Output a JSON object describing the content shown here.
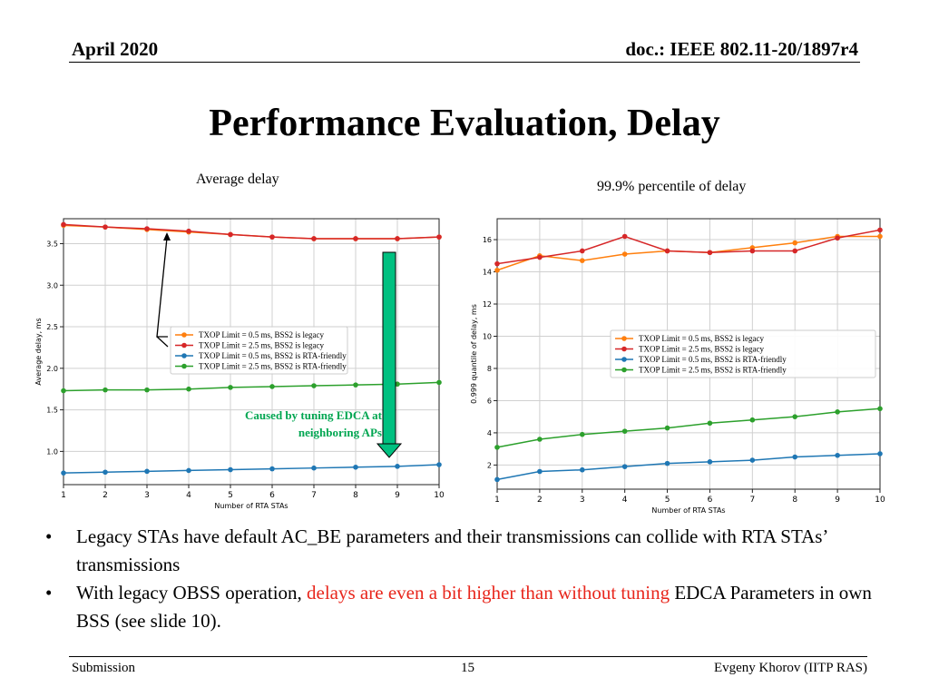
{
  "header": {
    "left": "April 2020",
    "right": "doc.: IEEE 802.11-20/1897r4"
  },
  "title": "Performance Evaluation, Delay",
  "captions": {
    "left": "Average delay",
    "right": "99.9% percentile of delay"
  },
  "annotation": {
    "line1": "Caused by tuning EDCA at",
    "line2": "neighboring APs",
    "color": "#00a651",
    "arrow_color": "#00c080"
  },
  "chart_data": [
    {
      "type": "line",
      "xlabel": "Number of RTA STAs",
      "ylabel": "Average delay, ms",
      "x": [
        1,
        2,
        3,
        4,
        5,
        6,
        7,
        8,
        9,
        10
      ],
      "xlim": [
        1,
        10
      ],
      "ylim": [
        0.6,
        3.8
      ],
      "yticks": [
        1.0,
        1.5,
        2.0,
        2.5,
        3.0,
        3.5
      ],
      "ytick_labels": [
        "1.0",
        "1.5",
        "2.0",
        "2.5",
        "3.0",
        "3.5"
      ],
      "grid": true,
      "legend_position": "center",
      "series": [
        {
          "name": "TXOP Limit = 0.5 ms, BSS2 is legacy",
          "color": "#ff7f0e",
          "values": [
            3.72,
            3.7,
            3.67,
            3.64,
            3.61,
            3.58,
            3.56,
            3.56,
            3.56,
            3.58
          ]
        },
        {
          "name": "TXOP Limit = 2.5 ms, BSS2 is legacy",
          "color": "#d62728",
          "values": [
            3.73,
            3.7,
            3.68,
            3.65,
            3.61,
            3.58,
            3.56,
            3.56,
            3.56,
            3.58
          ]
        },
        {
          "name": "TXOP Limit = 0.5 ms, BSS2 is RTA-friendly",
          "color": "#1f77b4",
          "values": [
            0.74,
            0.75,
            0.76,
            0.77,
            0.78,
            0.79,
            0.8,
            0.81,
            0.82,
            0.84
          ]
        },
        {
          "name": "TXOP Limit = 2.5 ms, BSS2 is RTA-friendly",
          "color": "#2ca02c",
          "values": [
            1.73,
            1.74,
            1.74,
            1.75,
            1.77,
            1.78,
            1.79,
            1.8,
            1.81,
            1.83
          ]
        }
      ]
    },
    {
      "type": "line",
      "xlabel": "Number of RTA STAs",
      "ylabel": "0.999 quantile of delay, ms",
      "x": [
        1,
        2,
        3,
        4,
        5,
        6,
        7,
        8,
        9,
        10
      ],
      "xlim": [
        1,
        10
      ],
      "ylim": [
        0.5,
        17.3
      ],
      "yticks": [
        2,
        4,
        6,
        8,
        10,
        12,
        14,
        16
      ],
      "ytick_labels": [
        "2",
        "4",
        "6",
        "8",
        "10",
        "12",
        "14",
        "16"
      ],
      "grid": true,
      "legend_position": "center-right",
      "series": [
        {
          "name": "TXOP Limit = 0.5 ms, BSS2 is legacy",
          "color": "#ff7f0e",
          "values": [
            14.1,
            15.0,
            14.7,
            15.1,
            15.3,
            15.2,
            15.5,
            15.8,
            16.2,
            16.2
          ]
        },
        {
          "name": "TXOP Limit = 2.5 ms, BSS2 is legacy",
          "color": "#d62728",
          "values": [
            14.5,
            14.9,
            15.3,
            16.2,
            15.3,
            15.2,
            15.3,
            15.3,
            16.1,
            16.6
          ]
        },
        {
          "name": "TXOP Limit = 0.5 ms, BSS2 is RTA-friendly",
          "color": "#1f77b4",
          "values": [
            1.1,
            1.6,
            1.7,
            1.9,
            2.1,
            2.2,
            2.3,
            2.5,
            2.6,
            2.7
          ]
        },
        {
          "name": "TXOP Limit = 2.5 ms, BSS2 is RTA-friendly",
          "color": "#2ca02c",
          "values": [
            3.1,
            3.6,
            3.9,
            4.1,
            4.3,
            4.6,
            4.8,
            5.0,
            5.3,
            5.5
          ]
        }
      ]
    }
  ],
  "bullets": [
    {
      "parts": [
        {
          "text": "Legacy STAs have default AC_BE parameters and their transmissions can collide with RTA STAs’ transmissions"
        }
      ]
    },
    {
      "parts": [
        {
          "text": "With legacy OBSS operation, "
        },
        {
          "text": "delays are even a bit higher than without tuning",
          "red": true
        },
        {
          "text": " EDCA Parameters in own BSS (see slide 10)."
        }
      ]
    }
  ],
  "footer": {
    "left": "Submission",
    "center": "15",
    "right": "Evgeny Khorov (IITP RAS)"
  }
}
